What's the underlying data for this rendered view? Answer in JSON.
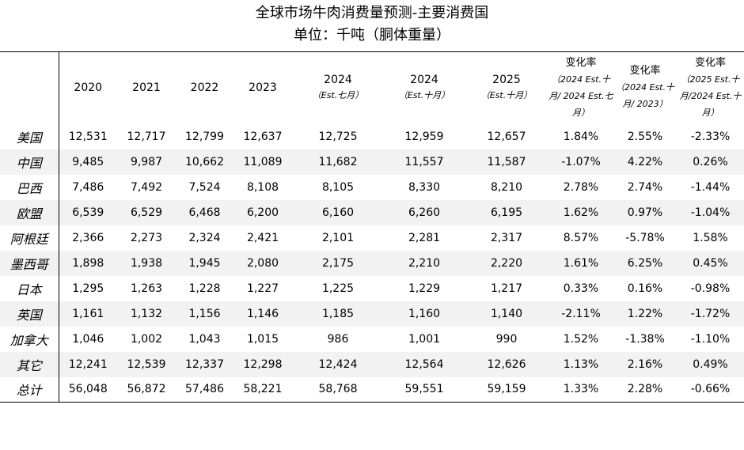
{
  "title": "全球市场牛肉消费量预测-主要消费国",
  "subtitle": "单位：千吨（胴体重量）",
  "columns": [
    {
      "label": "2020",
      "sub": ""
    },
    {
      "label": "2021",
      "sub": ""
    },
    {
      "label": "2022",
      "sub": ""
    },
    {
      "label": "2023",
      "sub": ""
    },
    {
      "label": "2024",
      "sub": "（Est.七月）"
    },
    {
      "label": "2024",
      "sub": "（Est.十月）"
    },
    {
      "label": "2025",
      "sub": "（Est.十月）"
    },
    {
      "label": "变化率",
      "sub": "（2024 Est.十月/ 2024 Est.七月）"
    },
    {
      "label": "变化率",
      "sub": "（2024 Est.十月/ 2023）"
    },
    {
      "label": "变化率",
      "sub": "（2025 Est.十月/2024 Est.十月）"
    }
  ],
  "rows": [
    {
      "country": "美国",
      "values": [
        "12,531",
        "12,717",
        "12,799",
        "12,637",
        "12,725",
        "12,959",
        "12,657",
        "1.84%",
        "2.55%",
        "-2.33%"
      ]
    },
    {
      "country": "中国",
      "values": [
        "9,485",
        "9,987",
        "10,662",
        "11,089",
        "11,682",
        "11,557",
        "11,587",
        "-1.07%",
        "4.22%",
        "0.26%"
      ]
    },
    {
      "country": "巴西",
      "values": [
        "7,486",
        "7,492",
        "7,524",
        "8,108",
        "8,105",
        "8,330",
        "8,210",
        "2.78%",
        "2.74%",
        "-1.44%"
      ]
    },
    {
      "country": "欧盟",
      "values": [
        "6,539",
        "6,529",
        "6,468",
        "6,200",
        "6,160",
        "6,260",
        "6,195",
        "1.62%",
        "0.97%",
        "-1.04%"
      ]
    },
    {
      "country": "阿根廷",
      "values": [
        "2,366",
        "2,273",
        "2,324",
        "2,421",
        "2,101",
        "2,281",
        "2,317",
        "8.57%",
        "-5.78%",
        "1.58%"
      ]
    },
    {
      "country": "墨西哥",
      "values": [
        "1,898",
        "1,938",
        "1,945",
        "2,080",
        "2,175",
        "2,210",
        "2,220",
        "1.61%",
        "6.25%",
        "0.45%"
      ]
    },
    {
      "country": "日本",
      "values": [
        "1,295",
        "1,263",
        "1,228",
        "1,227",
        "1,225",
        "1,229",
        "1,217",
        "0.33%",
        "0.16%",
        "-0.98%"
      ]
    },
    {
      "country": "英国",
      "values": [
        "1,161",
        "1,132",
        "1,156",
        "1,146",
        "1,185",
        "1,160",
        "1,140",
        "-2.11%",
        "1.22%",
        "-1.72%"
      ]
    },
    {
      "country": "加拿大",
      "values": [
        "1,046",
        "1,002",
        "1,043",
        "1,015",
        "986",
        "1,001",
        "990",
        "1.52%",
        "-1.38%",
        "-1.10%"
      ]
    },
    {
      "country": "其它",
      "values": [
        "12,241",
        "12,539",
        "12,337",
        "12,298",
        "12,424",
        "12,564",
        "12,626",
        "1.13%",
        "2.16%",
        "0.49%"
      ]
    },
    {
      "country": "总计",
      "values": [
        "56,048",
        "56,872",
        "57,486",
        "58,221",
        "58,768",
        "59,551",
        "59,159",
        "1.33%",
        "2.28%",
        "-0.66%"
      ]
    }
  ]
}
